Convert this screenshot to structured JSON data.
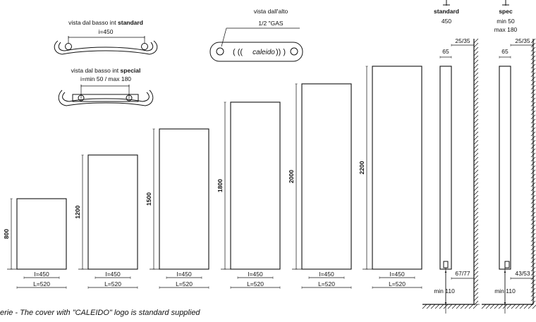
{
  "views": {
    "bottom_standard": {
      "caption_prefix": "vista dal basso int ",
      "caption_bold": "standard",
      "dim": "i=450"
    },
    "bottom_special": {
      "caption_prefix": "vista dal basso int ",
      "caption_bold": "special",
      "dim": "i=min 50 / max 180"
    },
    "top": {
      "caption": "vista dall'alto",
      "gas": "1/2 \"GAS",
      "logo": "caleido",
      "glyphs_left": "( ((",
      "glyphs_right": ")) )"
    }
  },
  "panels": [
    {
      "height_label": "800",
      "i_label": "I=450",
      "l_label": "L=520"
    },
    {
      "height_label": "1200",
      "i_label": "I=450",
      "l_label": "L=520"
    },
    {
      "height_label": "1500",
      "i_label": "I=450",
      "l_label": "L=520"
    },
    {
      "height_label": "1800",
      "i_label": "I=450",
      "l_label": "L=520"
    },
    {
      "height_label": "2000",
      "i_label": "I=450",
      "l_label": "L=520"
    },
    {
      "height_label": "2200",
      "i_label": "I=450",
      "l_label": "L=520"
    }
  ],
  "side_views": [
    {
      "title": "standard",
      "sub1": "450",
      "sub2": "",
      "width": "65",
      "wall": "25/35",
      "bottom_gap": "67/77",
      "min_floor": "min 110"
    },
    {
      "title": "spec",
      "sub1": "min 50",
      "sub2": "max 180",
      "width": "65",
      "wall": "25/35",
      "bottom_gap": "43/53",
      "min_floor": "min 110"
    }
  ],
  "footer_note": "erie - The cover with \"CALEIDO\" logo is standard supplied"
}
